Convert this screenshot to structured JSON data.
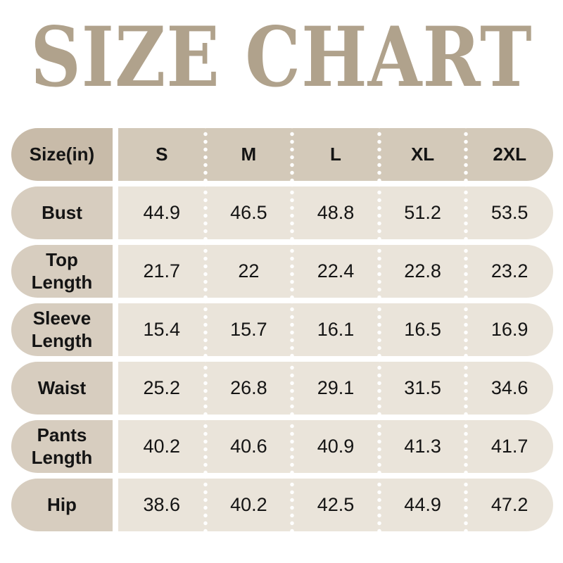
{
  "title": "SIZE CHART",
  "colors": {
    "title": "#b0a28c",
    "header_label_bg": "#c8bba9",
    "header_data_bg": "#d3c9b9",
    "row_label_bg": "#d7cdbf",
    "row_data_bg": "#eae4da",
    "text": "#141414",
    "divider_dots": "#ffffff"
  },
  "table": {
    "header": {
      "label": "Size(in)",
      "cols": [
        "S",
        "M",
        "L",
        "XL",
        "2XL"
      ]
    },
    "rows": [
      {
        "label": "Bust",
        "values": [
          "44.9",
          "46.5",
          "48.8",
          "51.2",
          "53.5"
        ]
      },
      {
        "label": "Top Length",
        "values": [
          "21.7",
          "22",
          "22.4",
          "22.8",
          "23.2"
        ]
      },
      {
        "label": "Sleeve Length",
        "values": [
          "15.4",
          "15.7",
          "16.1",
          "16.5",
          "16.9"
        ]
      },
      {
        "label": "Waist",
        "values": [
          "25.2",
          "26.8",
          "29.1",
          "31.5",
          "34.6"
        ]
      },
      {
        "label": "Pants Length",
        "values": [
          "40.2",
          "40.6",
          "40.9",
          "41.3",
          "41.7"
        ]
      },
      {
        "label": "Hip",
        "values": [
          "38.6",
          "40.2",
          "42.5",
          "44.9",
          "47.2"
        ]
      }
    ]
  },
  "chart_data": {
    "type": "table",
    "title": "SIZE CHART",
    "unit": "inches",
    "columns": [
      "Size(in)",
      "S",
      "M",
      "L",
      "XL",
      "2XL"
    ],
    "rows": [
      [
        "Bust",
        44.9,
        46.5,
        48.8,
        51.2,
        53.5
      ],
      [
        "Top Length",
        21.7,
        22,
        22.4,
        22.8,
        23.2
      ],
      [
        "Sleeve Length",
        15.4,
        15.7,
        16.1,
        16.5,
        16.9
      ],
      [
        "Waist",
        25.2,
        26.8,
        29.1,
        31.5,
        34.6
      ],
      [
        "Pants Length",
        40.2,
        40.6,
        40.9,
        41.3,
        41.7
      ],
      [
        "Hip",
        38.6,
        40.2,
        42.5,
        44.9,
        47.2
      ]
    ]
  }
}
